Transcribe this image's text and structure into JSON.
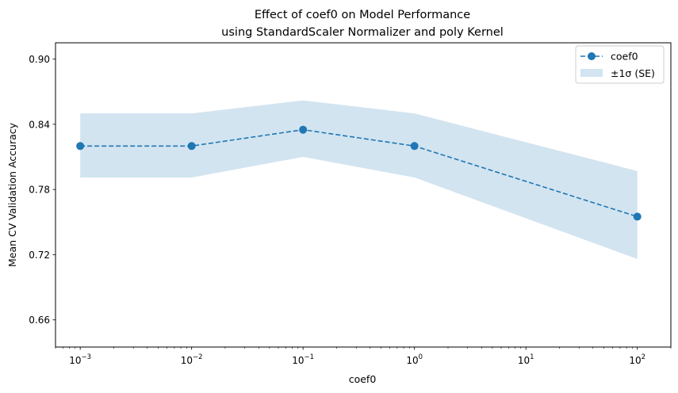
{
  "chart_data": {
    "type": "line",
    "title": "Effect of coef0 on Model Performance",
    "subtitle": "using StandardScaler Normalizer and poly Kernel",
    "xlabel": "coef0",
    "ylabel": "Mean CV Validation Accuracy",
    "x_scale": "log",
    "x": [
      0.001,
      0.01,
      0.1,
      1,
      100
    ],
    "xlim": [
      0.0006,
      200
    ],
    "ylim": [
      0.635,
      0.915
    ],
    "x_ticks": [
      {
        "value": 0.001,
        "base": "10",
        "exp": "−3"
      },
      {
        "value": 0.01,
        "base": "10",
        "exp": "−2"
      },
      {
        "value": 0.1,
        "base": "10",
        "exp": "−1"
      },
      {
        "value": 1,
        "base": "10",
        "exp": "0"
      },
      {
        "value": 10,
        "base": "10",
        "exp": "1"
      },
      {
        "value": 100,
        "base": "10",
        "exp": "2"
      }
    ],
    "y_ticks": [
      "0.66",
      "0.72",
      "0.78",
      "0.84",
      "0.90"
    ],
    "series": [
      {
        "name": "coef0",
        "values": [
          0.82,
          0.82,
          0.835,
          0.82,
          0.755
        ],
        "color": "#1f77b4",
        "line_style": "dashed",
        "marker": "circle"
      }
    ],
    "band": {
      "name": "±1σ (SE)",
      "lower": [
        0.791,
        0.791,
        0.81,
        0.791,
        0.716
      ],
      "upper": [
        0.85,
        0.85,
        0.862,
        0.85,
        0.797
      ],
      "color": "#1f77b4",
      "opacity": 0.2
    },
    "legend_position": "top-right",
    "grid": false
  }
}
